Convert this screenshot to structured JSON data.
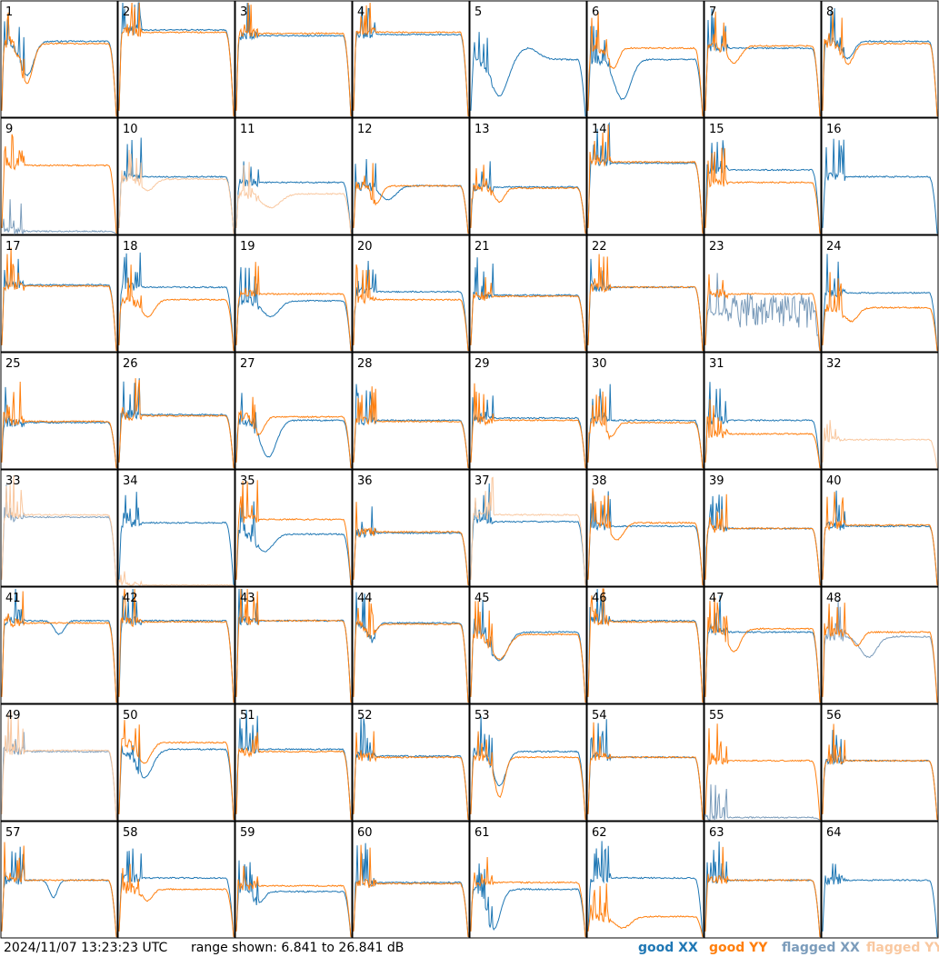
{
  "footer": {
    "timestamp": "2024/11/07 13:23:23 UTC",
    "range": "range shown: 6.841 to 26.841 dB"
  },
  "legend": [
    {
      "label": "good XX",
      "color": "#1f77b4"
    },
    {
      "label": "good YY",
      "color": "#ff7f0e"
    },
    {
      "label": "flagged XX",
      "color": "#7b9cbb"
    },
    {
      "label": "flagged YY",
      "color": "#f9c8a0"
    }
  ],
  "chart_data": {
    "type": "line",
    "ylim": [
      6.841,
      26.841
    ],
    "yunit": "dB",
    "panels": [
      {
        "id": "1",
        "xx": "good",
        "yy": "good",
        "xxLevel": 0.66,
        "yyLevel": 0.64,
        "xxDip": {
          "at": 0.22,
          "depth": 0.3,
          "width": 0.08
        },
        "yyDip": {
          "at": 0.22,
          "depth": 0.35,
          "width": 0.07
        }
      },
      {
        "id": "2",
        "xx": "good",
        "yy": "good",
        "xxLevel": 0.76,
        "yyLevel": 0.74
      },
      {
        "id": "3",
        "xx": "good",
        "yy": "good",
        "xxLevel": 0.71,
        "yyLevel": 0.73
      },
      {
        "id": "4",
        "xx": "good",
        "yy": "good",
        "xxLevel": 0.72,
        "yyLevel": 0.74
      },
      {
        "id": "5",
        "xx": "good",
        "yy": "none",
        "xxLevel": 0.5,
        "xxDip": {
          "at": 0.25,
          "depth": 0.32,
          "width": 0.1
        },
        "xxBump": {
          "at": 0.5,
          "height": 0.1,
          "width": 0.12
        }
      },
      {
        "id": "6",
        "xx": "good",
        "yy": "good",
        "xxLevel": 0.5,
        "yyLevel": 0.6,
        "xxDip": {
          "at": 0.3,
          "depth": 0.35,
          "width": 0.1
        },
        "yyDip": {
          "at": 0.22,
          "depth": 0.18,
          "width": 0.06
        }
      },
      {
        "id": "7",
        "xx": "good",
        "yy": "good",
        "xxLevel": 0.6,
        "yyLevel": 0.62,
        "yyDip": {
          "at": 0.25,
          "depth": 0.15,
          "width": 0.08
        }
      },
      {
        "id": "8",
        "xx": "good",
        "yy": "good",
        "xxLevel": 0.66,
        "yyLevel": 0.64,
        "xxDip": {
          "at": 0.22,
          "depth": 0.15,
          "width": 0.07
        },
        "yyDip": {
          "at": 0.22,
          "depth": 0.18,
          "width": 0.07
        }
      },
      {
        "id": "9",
        "xx": "flagged",
        "yy": "good",
        "xxLevel": 0.02,
        "yyLevel": 0.6
      },
      {
        "id": "10",
        "xx": "good",
        "yy": "flagged",
        "xxLevel": 0.5,
        "yyLevel": 0.48,
        "yyDip": {
          "at": 0.25,
          "depth": 0.1,
          "width": 0.08
        }
      },
      {
        "id": "11",
        "xx": "good",
        "yy": "flagged",
        "xxLevel": 0.45,
        "yyLevel": 0.35,
        "yyDip": {
          "at": 0.3,
          "depth": 0.12,
          "width": 0.12
        }
      },
      {
        "id": "12",
        "xx": "good",
        "yy": "good",
        "xxLevel": 0.42,
        "yyLevel": 0.42,
        "xxDip": {
          "at": 0.3,
          "depth": 0.12,
          "width": 0.1
        },
        "yyDip": {
          "at": 0.2,
          "depth": 0.15,
          "width": 0.06
        }
      },
      {
        "id": "13",
        "xx": "good",
        "yy": "good",
        "xxLevel": 0.41,
        "yyLevel": 0.4,
        "yyDip": {
          "at": 0.25,
          "depth": 0.12,
          "width": 0.06
        }
      },
      {
        "id": "14",
        "xx": "good",
        "yy": "good",
        "xxLevel": 0.62,
        "yyLevel": 0.63
      },
      {
        "id": "15",
        "xx": "good",
        "yy": "good",
        "xxLevel": 0.56,
        "yyLevel": 0.45
      },
      {
        "id": "16",
        "xx": "good",
        "yy": "none",
        "xxLevel": 0.5
      },
      {
        "id": "17",
        "xx": "good",
        "yy": "good",
        "xxLevel": 0.58,
        "yyLevel": 0.57
      },
      {
        "id": "18",
        "xx": "good",
        "yy": "good",
        "xxLevel": 0.56,
        "yyLevel": 0.45,
        "yyDip": {
          "at": 0.25,
          "depth": 0.15,
          "width": 0.08
        }
      },
      {
        "id": "19",
        "xx": "good",
        "yy": "good",
        "xxLevel": 0.44,
        "yyLevel": 0.5,
        "xxDip": {
          "at": 0.3,
          "depth": 0.14,
          "width": 0.1
        }
      },
      {
        "id": "20",
        "xx": "good",
        "yy": "good",
        "xxLevel": 0.52,
        "yyLevel": 0.45
      },
      {
        "id": "21",
        "xx": "good",
        "yy": "good",
        "xxLevel": 0.49,
        "yyLevel": 0.48
      },
      {
        "id": "22",
        "xx": "good",
        "yy": "good",
        "xxLevel": 0.56,
        "yyLevel": 0.56
      },
      {
        "id": "23",
        "xx": "flagged",
        "yy": "good",
        "xxLevel": 0.35,
        "yyLevel": 0.5,
        "xxNoise": 0.3
      },
      {
        "id": "24",
        "xx": "good",
        "yy": "good",
        "xxLevel": 0.51,
        "yyLevel": 0.38,
        "yyDip": {
          "at": 0.25,
          "depth": 0.12,
          "width": 0.08
        }
      },
      {
        "id": "25",
        "xx": "good",
        "yy": "good",
        "xxLevel": 0.4,
        "yyLevel": 0.41
      },
      {
        "id": "26",
        "xx": "good",
        "yy": "good",
        "xxLevel": 0.47,
        "yyLevel": 0.46
      },
      {
        "id": "27",
        "xx": "good",
        "yy": "good",
        "xxLevel": 0.42,
        "yyLevel": 0.45,
        "xxDip": {
          "at": 0.28,
          "depth": 0.32,
          "width": 0.1
        },
        "yyDip": {
          "at": 0.2,
          "depth": 0.15,
          "width": 0.06
        }
      },
      {
        "id": "28",
        "xx": "good",
        "yy": "good",
        "xxLevel": 0.42,
        "yyLevel": 0.41
      },
      {
        "id": "29",
        "xx": "good",
        "yy": "good",
        "xxLevel": 0.44,
        "yyLevel": 0.42
      },
      {
        "id": "30",
        "xx": "good",
        "yy": "good",
        "xxLevel": 0.42,
        "yyLevel": 0.4,
        "yyDip": {
          "at": 0.2,
          "depth": 0.12,
          "width": 0.06
        }
      },
      {
        "id": "31",
        "xx": "good",
        "yy": "good",
        "xxLevel": 0.42,
        "yyLevel": 0.3
      },
      {
        "id": "32",
        "xx": "none",
        "yy": "flagged",
        "yyLevel": 0.25
      },
      {
        "id": "33",
        "xx": "flagged",
        "yy": "flagged",
        "xxLevel": 0.6,
        "yyLevel": 0.62
      },
      {
        "id": "34",
        "xx": "good",
        "yy": "flagged",
        "xxLevel": 0.55,
        "yyLevel": 0.0
      },
      {
        "id": "35",
        "xx": "good",
        "yy": "good",
        "xxLevel": 0.45,
        "yyLevel": 0.58,
        "xxDip": {
          "at": 0.25,
          "depth": 0.15,
          "width": 0.1
        }
      },
      {
        "id": "36",
        "xx": "good",
        "yy": "good",
        "xxLevel": 0.46,
        "yyLevel": 0.47
      },
      {
        "id": "37",
        "xx": "good",
        "yy": "flagged",
        "xxLevel": 0.56,
        "yyLevel": 0.62
      },
      {
        "id": "38",
        "xx": "good",
        "yy": "good",
        "xxLevel": 0.52,
        "yyLevel": 0.55,
        "yyDip": {
          "at": 0.25,
          "depth": 0.15,
          "width": 0.08
        }
      },
      {
        "id": "39",
        "xx": "good",
        "yy": "good",
        "xxLevel": 0.5,
        "yyLevel": 0.5
      },
      {
        "id": "40",
        "xx": "good",
        "yy": "good",
        "xxLevel": 0.52,
        "yyLevel": 0.53
      },
      {
        "id": "41",
        "xx": "good",
        "yy": "good",
        "xxLevel": 0.72,
        "yyLevel": 0.7,
        "xxDip": {
          "at": 0.5,
          "depth": 0.12,
          "width": 0.06
        }
      },
      {
        "id": "42",
        "xx": "good",
        "yy": "good",
        "xxLevel": 0.72,
        "yyLevel": 0.71
      },
      {
        "id": "43",
        "xx": "good",
        "yy": "good",
        "xxLevel": 0.72,
        "yyLevel": 0.72
      },
      {
        "id": "44",
        "xx": "good",
        "yy": "good",
        "xxLevel": 0.7,
        "yyLevel": 0.69,
        "xxDip": {
          "at": 0.15,
          "depth": 0.14,
          "width": 0.06
        },
        "yyDip": {
          "at": 0.15,
          "depth": 0.1,
          "width": 0.06
        }
      },
      {
        "id": "45",
        "xx": "good",
        "yy": "good",
        "xxLevel": 0.62,
        "yyLevel": 0.6,
        "xxDip": {
          "at": 0.25,
          "depth": 0.25,
          "width": 0.1
        },
        "yyDip": {
          "at": 0.25,
          "depth": 0.22,
          "width": 0.1
        }
      },
      {
        "id": "46",
        "xx": "good",
        "yy": "good",
        "xxLevel": 0.72,
        "yyLevel": 0.71
      },
      {
        "id": "47",
        "xx": "good",
        "yy": "good",
        "xxLevel": 0.62,
        "yyLevel": 0.65,
        "yyDip": {
          "at": 0.25,
          "depth": 0.2,
          "width": 0.08
        }
      },
      {
        "id": "48",
        "xx": "flagged",
        "yy": "good",
        "xxLevel": 0.58,
        "yyLevel": 0.62,
        "xxDip": {
          "at": 0.4,
          "depth": 0.18,
          "width": 0.1
        },
        "yyDip": {
          "at": 0.3,
          "depth": 0.12,
          "width": 0.06
        }
      },
      {
        "id": "49",
        "xx": "flagged",
        "yy": "flagged",
        "xxLevel": 0.6,
        "yyLevel": 0.61
      },
      {
        "id": "50",
        "xx": "good",
        "yy": "good",
        "xxLevel": 0.62,
        "yyLevel": 0.68,
        "xxDip": {
          "at": 0.22,
          "depth": 0.25,
          "width": 0.1
        },
        "yyDip": {
          "at": 0.22,
          "depth": 0.18,
          "width": 0.08
        }
      },
      {
        "id": "51",
        "xx": "good",
        "yy": "good",
        "xxLevel": 0.62,
        "yyLevel": 0.6
      },
      {
        "id": "52",
        "xx": "good",
        "yy": "good",
        "xxLevel": 0.56,
        "yyLevel": 0.55
      },
      {
        "id": "53",
        "xx": "good",
        "yy": "good",
        "xxLevel": 0.6,
        "yyLevel": 0.55,
        "xxDip": {
          "at": 0.25,
          "depth": 0.3,
          "width": 0.08
        },
        "yyDip": {
          "at": 0.25,
          "depth": 0.35,
          "width": 0.06
        }
      },
      {
        "id": "54",
        "xx": "good",
        "yy": "good",
        "xxLevel": 0.55,
        "yyLevel": 0.55
      },
      {
        "id": "55",
        "xx": "flagged",
        "yy": "good",
        "xxLevel": 0.02,
        "yyLevel": 0.52
      },
      {
        "id": "56",
        "xx": "good",
        "yy": "good",
        "xxLevel": 0.52,
        "yyLevel": 0.52
      },
      {
        "id": "57",
        "xx": "good",
        "yy": "good",
        "xxLevel": 0.5,
        "yyLevel": 0.5,
        "xxDip": {
          "at": 0.45,
          "depth": 0.15,
          "width": 0.05
        }
      },
      {
        "id": "58",
        "xx": "good",
        "yy": "good",
        "xxLevel": 0.52,
        "yyLevel": 0.42,
        "yyDip": {
          "at": 0.25,
          "depth": 0.1,
          "width": 0.06
        }
      },
      {
        "id": "59",
        "xx": "good",
        "yy": "good",
        "xxLevel": 0.4,
        "yyLevel": 0.45,
        "xxDip": {
          "at": 0.2,
          "depth": 0.1,
          "width": 0.06
        }
      },
      {
        "id": "60",
        "xx": "good",
        "yy": "good",
        "xxLevel": 0.48,
        "yyLevel": 0.47
      },
      {
        "id": "61",
        "xx": "good",
        "yy": "good",
        "xxLevel": 0.42,
        "yyLevel": 0.48,
        "xxDip": {
          "at": 0.2,
          "depth": 0.35,
          "width": 0.08
        }
      },
      {
        "id": "62",
        "xx": "good",
        "yy": "good",
        "xxLevel": 0.52,
        "yyLevel": 0.18,
        "yyDip": {
          "at": 0.3,
          "depth": 0.1,
          "width": 0.1
        }
      },
      {
        "id": "63",
        "xx": "good",
        "yy": "good",
        "xxLevel": 0.5,
        "yyLevel": 0.5
      },
      {
        "id": "64",
        "xx": "good",
        "yy": "none",
        "xxLevel": 0.5
      }
    ]
  }
}
